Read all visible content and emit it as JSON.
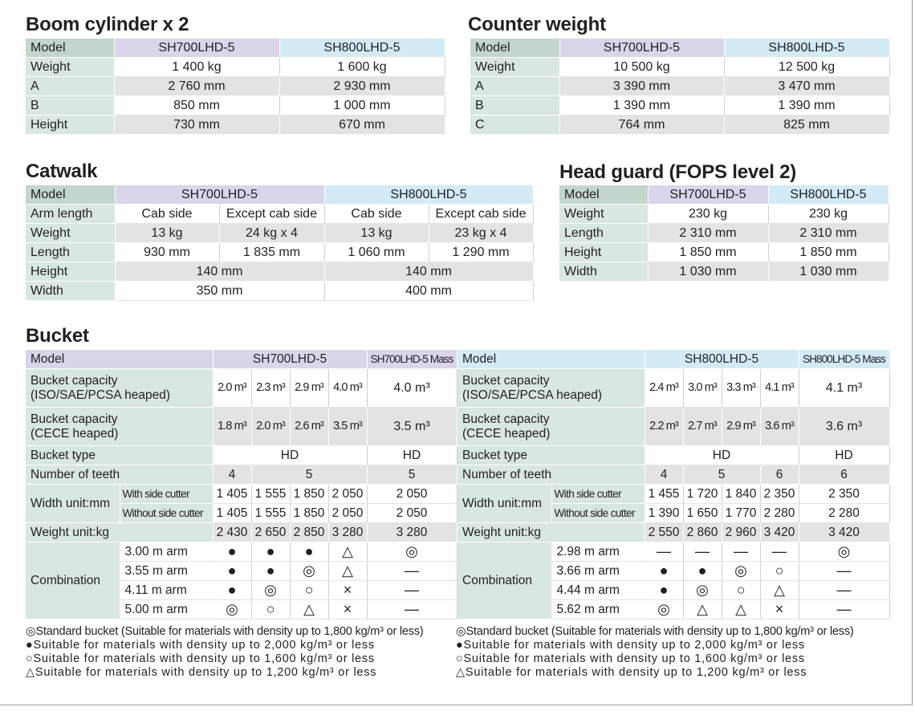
{
  "boom": {
    "title": "Boom cylinder x 2",
    "head": [
      "Model",
      "SH700LHD-5",
      "SH800LHD-5"
    ],
    "rows": [
      [
        "Weight",
        "1 400 kg",
        "1 600 kg"
      ],
      [
        "A",
        "2 760 mm",
        "2 930 mm"
      ],
      [
        "B",
        "850 mm",
        "1 000 mm"
      ],
      [
        "Height",
        "730 mm",
        "670 mm"
      ]
    ]
  },
  "counter": {
    "title": "Counter weight",
    "head": [
      "Model",
      "SH700LHD-5",
      "SH800LHD-5"
    ],
    "rows": [
      [
        "Weight",
        "10 500 kg",
        "12 500 kg"
      ],
      [
        "A",
        "3 390 mm",
        "3 470 mm"
      ],
      [
        "B",
        "1 390 mm",
        "1 390 mm"
      ],
      [
        "C",
        "764 mm",
        "825 mm"
      ]
    ]
  },
  "catwalk": {
    "title": "Catwalk",
    "head": [
      "Model",
      "SH700LHD-5",
      "SH800LHD-5"
    ],
    "arm": [
      "Arm length",
      "Cab side",
      "Except cab side",
      "Cab side",
      "Except cab side"
    ],
    "weight": [
      "Weight",
      "13 kg",
      "24 kg x 4",
      "13 kg",
      "23 kg x 4"
    ],
    "length": [
      "Length",
      "930 mm",
      "1 835 mm",
      "1 060 mm",
      "1 290 mm"
    ],
    "height": [
      "Height",
      "140 mm",
      "140 mm"
    ],
    "width": [
      "Width",
      "350 mm",
      "400 mm"
    ]
  },
  "head_guard": {
    "title": "Head guard (FOPS level 2)",
    "head": [
      "Model",
      "SH700LHD-5",
      "SH800LHD-5"
    ],
    "rows": [
      [
        "Weight",
        "230 kg",
        "230 kg"
      ],
      [
        "Length",
        "2 310 mm",
        "2 310 mm"
      ],
      [
        "Height",
        "1 850 mm",
        "1 850 mm"
      ],
      [
        "Width",
        "1 030 mm",
        "1 030 mm"
      ]
    ]
  },
  "bucket": {
    "title": "Bucket",
    "left": {
      "model_label": "Model",
      "model": "SH700LHD-5",
      "mass": "SH700LHD-5 Mass",
      "cap_iso_label": [
        "Bucket capacity",
        "(ISO/SAE/PCSA heaped)"
      ],
      "cap_iso": [
        "2.0 m³",
        "2.3 m³",
        "2.9 m³",
        "4.0 m³",
        "4.0 m³"
      ],
      "cap_cece_label": [
        "Bucket capacity",
        "(CECE heaped)"
      ],
      "cap_cece": [
        "1.8 m³",
        "2.0 m³",
        "2.6 m³",
        "3.5 m³",
        "3.5 m³"
      ],
      "type_label": "Bucket type",
      "type": [
        "HD",
        "HD"
      ],
      "teeth_label": "Number of teeth",
      "teeth": [
        "4",
        "5",
        "5"
      ],
      "width_label": "Width  unit:mm",
      "with_cutter_label": "With side cutter",
      "with_cutter": [
        "1 405",
        "1 555",
        "1 850",
        "2 050",
        "2 050"
      ],
      "without_cutter_label": "Without side cutter",
      "without_cutter": [
        "1 405",
        "1 555",
        "1 850",
        "2 050",
        "2 050"
      ],
      "weight_label": "Weight  unit:kg",
      "weight": [
        "2 430",
        "2 650",
        "2 850",
        "3 280",
        "3 280"
      ],
      "combination_label": "Combination",
      "arms": [
        "3.00 m  arm",
        "3.55 m  arm",
        "4.11 m  arm",
        "5.00 m  arm"
      ],
      "combos": [
        [
          "●",
          "●",
          "●",
          "△",
          "◎"
        ],
        [
          "●",
          "●",
          "◎",
          "△",
          "—"
        ],
        [
          "●",
          "◎",
          "○",
          "×",
          "—"
        ],
        [
          "◎",
          "○",
          "△",
          "×",
          "—"
        ]
      ]
    },
    "right": {
      "model_label": "Model",
      "model": "SH800LHD-5",
      "mass": "SH800LHD-5 Mass",
      "cap_iso_label": [
        "Bucket capacity",
        "(ISO/SAE/PCSA heaped)"
      ],
      "cap_iso": [
        "2.4 m³",
        "3.0 m³",
        "3.3 m³",
        "4.1 m³",
        "4.1 m³"
      ],
      "cap_cece_label": [
        "Bucket capacity",
        "(CECE heaped)"
      ],
      "cap_cece": [
        "2.2 m³",
        "2.7 m³",
        "2.9 m³",
        "3.6 m³",
        "3.6 m³"
      ],
      "type_label": "Bucket type",
      "type": [
        "HD",
        "HD"
      ],
      "teeth_label": "Number of teeth",
      "teeth": [
        "4",
        "5",
        "6",
        "6"
      ],
      "width_label": "Width  unit:mm",
      "with_cutter_label": "With side cutter",
      "with_cutter": [
        "1 455",
        "1 720",
        "1 840",
        "2 350",
        "2 350"
      ],
      "without_cutter_label": "Without side cutter",
      "without_cutter": [
        "1 390",
        "1 650",
        "1 770",
        "2 280",
        "2 280"
      ],
      "weight_label": "Weight  unit:kg",
      "weight": [
        "2 550",
        "2 860",
        "2 960",
        "3 420",
        "3 420"
      ],
      "combination_label": "Combination",
      "arms": [
        "2.98 m  arm",
        "3.66 m  arm",
        "4.44 m  arm",
        "5.62 m  arm"
      ],
      "combos": [
        [
          "—",
          "—",
          "—",
          "—",
          "◎"
        ],
        [
          "●",
          "●",
          "◎",
          "○",
          "—"
        ],
        [
          "●",
          "◎",
          "○",
          "△",
          "—"
        ],
        [
          "◎",
          "△",
          "△",
          "×",
          "—"
        ]
      ]
    },
    "legend": [
      "◎Standard bucket (Suitable for materials with density up to 1,800 kg/m³ or less)",
      "●Suitable for materials with density up to 2,000 kg/m³ or less",
      "○Suitable for materials with density up to 1,600 kg/m³ or less",
      "△Suitable for materials with density up to 1,200 kg/m³ or less"
    ]
  }
}
